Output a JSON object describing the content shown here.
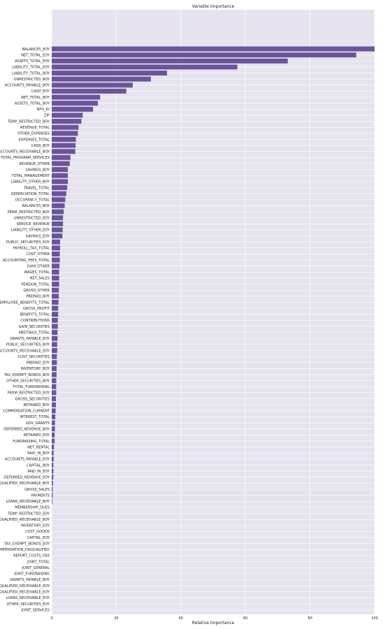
{
  "chart_data": {
    "type": "bar",
    "orientation": "horizontal",
    "title": "Variable Importance",
    "xlabel": "Relative Importance",
    "ylabel": "",
    "xlim": [
      0,
      100
    ],
    "xticks": [
      0,
      20,
      40,
      60,
      80,
      100
    ],
    "grid": true,
    "legend": "none",
    "colors": {
      "bar": "#6a559b",
      "plot_bg": "#e6e3ef",
      "grid": "#ffffff",
      "text": "#222222"
    },
    "categories": [
      "BALANCES_EOY",
      "NET_TOTAL_EOY",
      "ASSETS_TOTAL_EOY",
      "LIABILITY_TOTAL_EOY",
      "LIABILITY_TOTAL_BOY",
      "UNRESTRICTED_BOY",
      "ACCOUNTS_PAYABLE_BOY",
      "CASH_EOY",
      "NET_TOTAL_BOY",
      "ASSETS_TOTAL_BOY",
      "NFO_ID",
      "ZIP",
      "TEMP_RESTRICTED_BOY",
      "REVENUE_TOTAL",
      "OTHER_EXPENSES",
      "EXPENSES_TOTAL",
      "CASH_BOY",
      "ACCOUNTS_RECEIVABLE_BOY",
      "TOTAL_PROGRAM_SERVICES",
      "REVENUE_OTHER",
      "SAVINGS_BOY",
      "TOTAL_MANAGEMENT",
      "LIABILITY_OTHER_BOY",
      "TRAVEL_TOTAL",
      "DEPRECIATION_TOTAL",
      "OCCUPANCY_TOTAL",
      "BALANCES_BOY",
      "PERM_RESTRICTED_BOY",
      "UNRESTRICTED_EOY",
      "SERVICE_REVENUE",
      "LIABILITY_OTHER_EOY",
      "SAVINGS_EOY",
      "PUBLIC_SECURITIES_EOY",
      "PAYROLL_TAX_TOTAL",
      "COST_OTHER",
      "ACCOUNTING_FEES_TOTAL",
      "GAIN_OTHER",
      "WAGES_TOTAL",
      "NET_SALES",
      "PENSION_TOTAL",
      "GROSS_OTHER",
      "PREPAID_BOY",
      "EMPLOYEE_BENEFITS_TOTAL",
      "GROSS_PROFIT",
      "BENEFITS_TOTAL",
      "CONTRIBUTIONS",
      "GAIN_SECURITIES",
      "MEETINGS_TOTAL",
      "GRANTS_PAYABLE_EOY",
      "PUBLIC_SECURITIES_BOY",
      "ACCOUNTS_RECEIVABLE_EOY",
      "COST_SECURITIES",
      "PREPAID_EOY",
      "INVENTORY_BOY",
      "TAX_EXEMPT_BONDS_BOY",
      "OTHER_SECURITIES_BOY",
      "TOTAL_FUNDRAISING",
      "PERM_RESTRICTED_EOY",
      "GROSS_SECURITIES",
      "RETAINED_BOY",
      "COMPENSATION_CURRENT",
      "INTEREST_TOTAL",
      "GOV_GRANTS",
      "DEFERRED_REVENUE_BOY",
      "RETAINED_EOY",
      "FUNDRAISING_TOTAL",
      "NET_RENTAL",
      "PAID_IN_BOY",
      "ACCOUNTS_PAYABLE_EOY",
      "CAPITAL_BOY",
      "PAID_IN_EOY",
      "DEFERRED_REVENUE_EOY",
      "QUALIFIED_RECEIVABLE_BOY",
      "GROSS_SALES",
      "PAYMENTS",
      "LOANS_RECEIVABLE_BOY",
      "MEMBERSHIP_DUES",
      "TEMP_RESTRICTED_EOY",
      "DISQUALIFIED_RECEIVABLE_BOY",
      "INVENTORY_EOY",
      "COST_GOODS",
      "CAPITAL_EOY",
      "TAX_EXEMPT_BONDS_EOY",
      "COMPENSATION_DISQUALIFIED",
      "REPORT_COSTS_CBX",
      "JOINT_TOTAL",
      "JOINT_GENERAL",
      "JOINT_FUNDRAISING",
      "GRANTS_PAYABLE_BOY",
      "QUALIFIED_RECEIVABLE_EOY",
      "DISQUALIFIED_RECEIVABLE_EOY",
      "LOANS_RECEIVABLE_EOY",
      "OTHER_SECURITIES_EOY",
      "JOINT_SERVICES"
    ],
    "values": [
      100,
      94.3,
      73.1,
      57.5,
      35.7,
      30.7,
      25.1,
      23.1,
      15.0,
      14.3,
      12.8,
      9.6,
      9.2,
      8.3,
      8.1,
      7.5,
      7.4,
      7.3,
      5.8,
      5.6,
      5.0,
      5.0,
      5.0,
      4.8,
      4.5,
      4.2,
      4.0,
      3.7,
      3.5,
      3.5,
      3.4,
      3.3,
      2.6,
      2.6,
      2.5,
      2.5,
      2.4,
      2.3,
      2.3,
      2.3,
      2.2,
      2.2,
      2.1,
      2.0,
      2.0,
      1.9,
      1.9,
      1.8,
      1.8,
      1.7,
      1.7,
      1.6,
      1.6,
      1.5,
      1.5,
      1.4,
      1.4,
      1.4,
      1.3,
      1.3,
      1.2,
      1.1,
      1.0,
      1.0,
      0.9,
      0.9,
      0.7,
      0.6,
      0.6,
      0.5,
      0.5,
      0.5,
      0.4,
      0.3,
      0.3,
      0.2,
      0,
      0,
      0,
      0,
      0,
      0,
      0,
      0,
      0,
      0,
      0,
      0,
      0,
      0,
      0,
      0,
      0,
      0
    ]
  }
}
